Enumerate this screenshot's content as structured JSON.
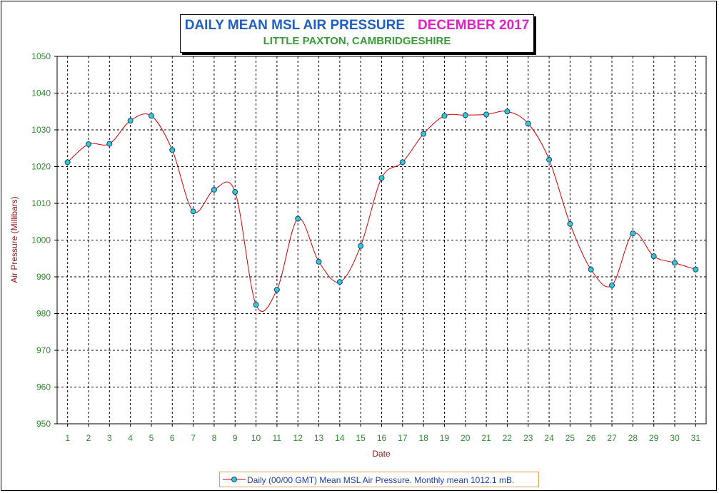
{
  "chart_data": {
    "type": "line",
    "title": "DAILY MEAN MSL AIR PRESSURE",
    "title_month": "DECEMBER 2017",
    "subtitle": "LITTLE PAXTON, CAMBRIDGESHIRE",
    "xlabel": "Date",
    "ylabel": "Air Pressure (Millibars)",
    "ylim": [
      950,
      1050
    ],
    "yticks": [
      950,
      960,
      970,
      980,
      990,
      1000,
      1010,
      1020,
      1030,
      1040,
      1050
    ],
    "x": [
      1,
      2,
      3,
      4,
      5,
      6,
      7,
      8,
      9,
      10,
      11,
      12,
      13,
      14,
      15,
      16,
      17,
      18,
      19,
      20,
      21,
      22,
      23,
      24,
      25,
      26,
      27,
      28,
      29,
      30,
      31
    ],
    "grid": true,
    "legend_position": "bottom",
    "series": [
      {
        "name": "Daily (00/00 GMT) Mean MSL Air Pressure. Monthly mean 1012.1 mB.",
        "values": [
          1021.2,
          1026.1,
          1026.2,
          1032.5,
          1033.8,
          1024.5,
          1007.8,
          1013.7,
          1013.1,
          982.4,
          986.5,
          1005.8,
          994.1,
          988.6,
          998.4,
          1016.9,
          1021.2,
          1028.9,
          1033.8,
          1034.0,
          1034.2,
          1035.0,
          1031.7,
          1021.9,
          1004.4,
          992.0,
          987.7,
          1001.8,
          995.6,
          993.8,
          992.0
        ]
      }
    ],
    "colors": {
      "line": "#cc0000",
      "marker_fill": "#33cccc",
      "marker_stroke": "#1a4080",
      "tick_labels": "#2e8b2e",
      "axis_title": "#8b1a1a",
      "title_main": "#1f5fbf",
      "title_month": "#e020c8",
      "subtitle": "#3a9a3a"
    }
  }
}
